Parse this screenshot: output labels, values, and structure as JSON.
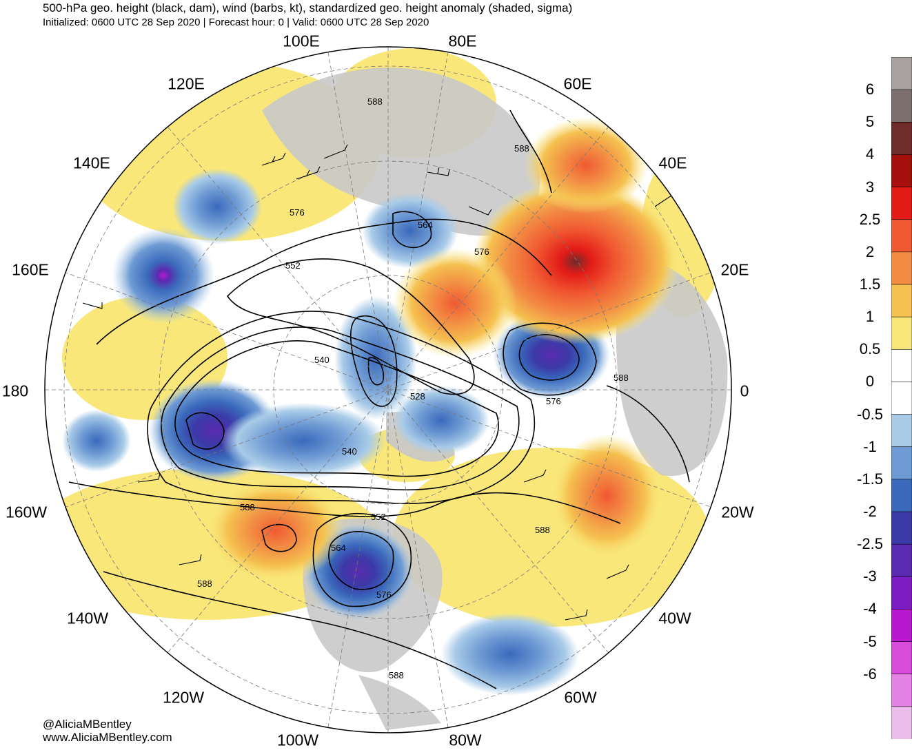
{
  "header": {
    "title": "500-hPa geo. height (black, dam), wind (barbs, kt), standardized geo. height anomaly (shaded, sigma)",
    "subtitle": "Initialized: 0600 UTC 28 Sep 2020 | Forecast hour: 0 | Valid: 0600 UTC 28 Sep 2020"
  },
  "longitude_labels": [
    "100E",
    "80E",
    "120E",
    "60E",
    "140E",
    "40E",
    "160E",
    "20E",
    "180",
    "0",
    "160W",
    "20W",
    "140W",
    "40W",
    "120W",
    "60W",
    "100W",
    "80W"
  ],
  "contour_labels": [
    "588",
    "588",
    "576",
    "564",
    "576",
    "552",
    "540",
    "528",
    "588",
    "576",
    "540",
    "552",
    "588",
    "564",
    "576",
    "588",
    "588",
    "588"
  ],
  "colorbar": {
    "labels": [
      "6",
      "5",
      "4",
      "3",
      "2.5",
      "2",
      "1.5",
      "1",
      "0.5",
      "0",
      "-0.5",
      "-1",
      "-1.5",
      "-2",
      "-2.5",
      "-3",
      "-4",
      "-5",
      "-6"
    ],
    "colors": [
      "#a9a0a0",
      "#7c6f6e",
      "#6e2c2a",
      "#a50f0c",
      "#e31b17",
      "#f05a32",
      "#f28c43",
      "#f5c150",
      "#f9e77a",
      "#ffffff",
      "#ffffff",
      "#a9cbe8",
      "#6f9bd4",
      "#3a69bb",
      "#3b3aa7",
      "#5a2bb0",
      "#7d1cc2",
      "#b619d0",
      "#d84cdc",
      "#e482e6",
      "#ecbcec"
    ]
  },
  "credits": {
    "handle": "@AliciaMBentley",
    "website": "www.AliciaMBentley.com"
  },
  "map_colors": {
    "land": "#c9c9c9",
    "ocean": "#ffffff",
    "contour": "#000000",
    "coast": "#444444"
  },
  "anomaly_blobs": [
    {
      "name": "aleutian-low",
      "sigma": -2.5
    },
    {
      "name": "kamchatka-low",
      "sigma": -4
    },
    {
      "name": "great-lakes-low",
      "sigma": -2.5
    },
    {
      "name": "scandinavia-low",
      "sigma": -2.5
    },
    {
      "name": "urals-high",
      "sigma": 2.5
    },
    {
      "name": "west-us-high",
      "sigma": 1.5
    },
    {
      "name": "central-asia-low",
      "sigma": -2
    }
  ]
}
